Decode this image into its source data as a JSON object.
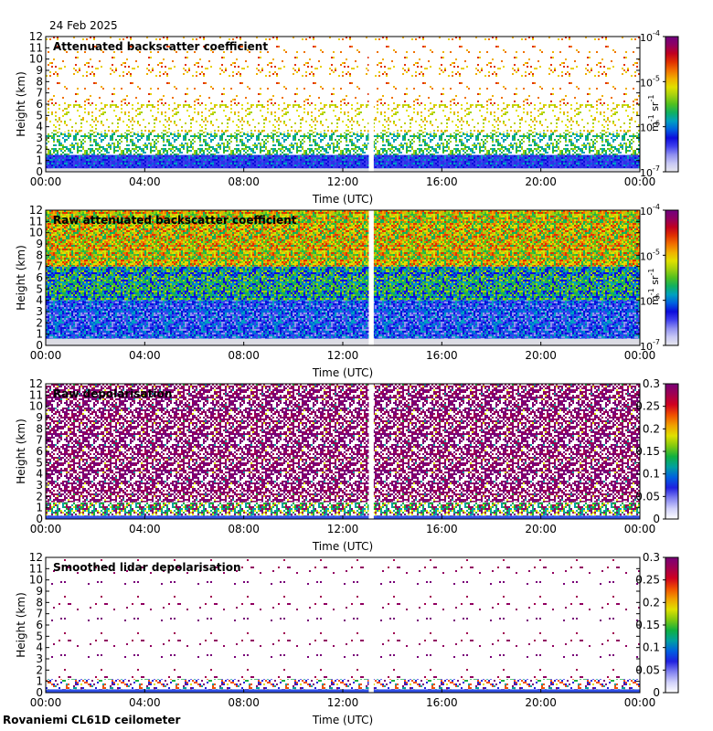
{
  "header": {
    "date": "24 Feb 2025"
  },
  "footer": {
    "station": "Rovaniemi CL61D ceilometer"
  },
  "chart_data": [
    {
      "type": "heatmap",
      "title": "Attenuated backscatter coefficient",
      "xlabel": "Time (UTC)",
      "ylabel": "Height (km)",
      "xlim": [
        0,
        24
      ],
      "ylim": [
        0,
        12
      ],
      "x_ticks": [
        "00:00",
        "04:00",
        "08:00",
        "12:00",
        "16:00",
        "20:00",
        "00:00"
      ],
      "y_ticks": [
        "0",
        "1",
        "2",
        "3",
        "4",
        "5",
        "6",
        "7",
        "8",
        "9",
        "10",
        "11",
        "12"
      ],
      "data_gap": [
        13.05,
        13.25
      ],
      "colorbar": {
        "scale": "log",
        "range": [
          1e-07,
          0.0001
        ],
        "tick_labels": [
          {
            "base": "10",
            "exp": "-4"
          },
          {
            "base": "10",
            "exp": "-5"
          },
          {
            "base": "10",
            "exp": "-6"
          },
          {
            "base": "10",
            "exp": "-7"
          }
        ],
        "unit": {
          "m": "m",
          "m_exp": "-1",
          "sr": "sr",
          "sr_exp": "-1"
        }
      }
    },
    {
      "type": "heatmap",
      "title": "Raw attenuated backscatter coefficient",
      "xlabel": "Time (UTC)",
      "ylabel": "Height (km)",
      "xlim": [
        0,
        24
      ],
      "ylim": [
        0,
        12
      ],
      "x_ticks": [
        "00:00",
        "04:00",
        "08:00",
        "12:00",
        "16:00",
        "20:00",
        "00:00"
      ],
      "y_ticks": [
        "0",
        "1",
        "2",
        "3",
        "4",
        "5",
        "6",
        "7",
        "8",
        "9",
        "10",
        "11",
        "12"
      ],
      "data_gap": [
        13.05,
        13.25
      ],
      "colorbar": {
        "scale": "log",
        "range": [
          1e-07,
          0.0001
        ],
        "tick_labels": [
          {
            "base": "10",
            "exp": "-4"
          },
          {
            "base": "10",
            "exp": "-5"
          },
          {
            "base": "10",
            "exp": "-6"
          },
          {
            "base": "10",
            "exp": "-7"
          }
        ],
        "unit": {
          "m": "m",
          "m_exp": "-1",
          "sr": "sr",
          "sr_exp": "-1"
        }
      }
    },
    {
      "type": "heatmap",
      "title": "Raw depolarisation",
      "xlabel": "Time (UTC)",
      "ylabel": "Height (km)",
      "xlim": [
        0,
        24
      ],
      "ylim": [
        0,
        12
      ],
      "x_ticks": [
        "00:00",
        "04:00",
        "08:00",
        "12:00",
        "16:00",
        "20:00",
        "00:00"
      ],
      "y_ticks": [
        "0",
        "1",
        "2",
        "3",
        "4",
        "5",
        "6",
        "7",
        "8",
        "9",
        "10",
        "11",
        "12"
      ],
      "data_gap": [
        13.05,
        13.25
      ],
      "colorbar": {
        "scale": "linear",
        "range": [
          0,
          0.3
        ],
        "tick_labels": [
          "0.3",
          "0.25",
          "0.2",
          "0.15",
          "0.1",
          "0.05",
          "0"
        ]
      }
    },
    {
      "type": "heatmap",
      "title": "Smoothed lidar depolarisation",
      "xlabel": "Time (UTC)",
      "ylabel": "Height (km)",
      "xlim": [
        0,
        24
      ],
      "ylim": [
        0,
        12
      ],
      "x_ticks": [
        "00:00",
        "04:00",
        "08:00",
        "12:00",
        "16:00",
        "20:00",
        "00:00"
      ],
      "y_ticks": [
        "0",
        "1",
        "2",
        "3",
        "4",
        "5",
        "6",
        "7",
        "8",
        "9",
        "10",
        "11",
        "12"
      ],
      "data_gap": [
        13.05,
        13.25
      ],
      "colorbar": {
        "scale": "linear",
        "range": [
          0,
          0.3
        ],
        "tick_labels": [
          "0.3",
          "0.25",
          "0.2",
          "0.15",
          "0.1",
          "0.05",
          "0"
        ]
      }
    }
  ]
}
